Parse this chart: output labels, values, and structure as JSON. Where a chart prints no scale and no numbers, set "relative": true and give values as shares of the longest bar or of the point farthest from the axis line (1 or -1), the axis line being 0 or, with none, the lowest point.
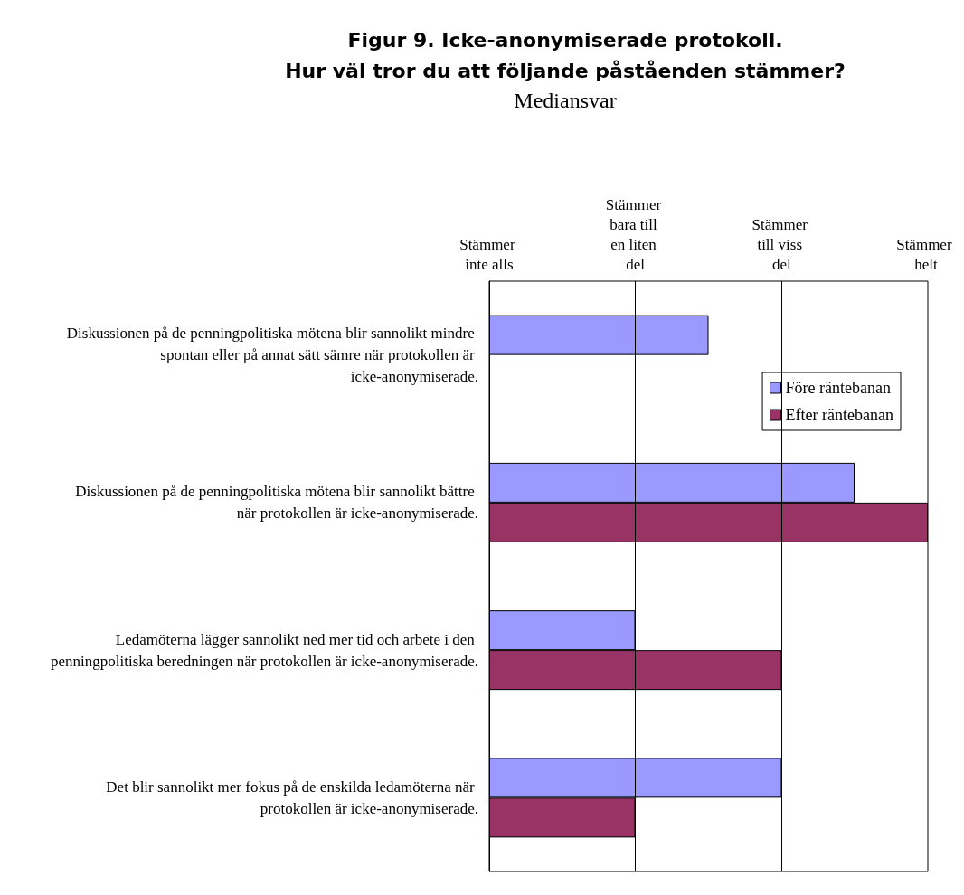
{
  "chart_data": {
    "type": "bar",
    "orientation": "horizontal",
    "relative": true,
    "title": "Figur 9. Icke-anonymiserade protokoll.\nHur väl tror du att följande påståenden stämmer?",
    "subtitle": "Mediansvar",
    "categories": [
      "Diskussionen på de penningpolitiska mötena blir sannolikt mindre spontan eller på annat sätt sämre när protokollen är icke-anonymiserade.",
      "Diskussionen på de penningpolitiska mötena blir sannolikt bättre när protokollen är icke-anonymiserade.",
      "Ledamöterna lägger sannolikt ned mer tid och arbete i den penningpolitiska beredningen när protokollen är icke-anonymiserade.",
      "Det blir sannolikt mer fokus på de enskilda ledamöterna när protokollen är icke-anonymiserade."
    ],
    "series": [
      {
        "name": "Före räntebanan",
        "color": "#9999ff",
        "values": [
          0.5,
          0.833,
          0.333,
          0.667
        ]
      },
      {
        "name": "Efter räntebanan",
        "color": "#993366",
        "values": [
          null,
          1,
          0.667,
          0.333
        ]
      }
    ],
    "annotations": [
      "Stämmer inte alls",
      "Stämmer bara till en liten del",
      "Stämmer till viss del",
      "Stämmer helt"
    ],
    "ref_lines": [
      {
        "axis": "x",
        "value": 0.333,
        "color": "#000000"
      },
      {
        "axis": "x",
        "value": 0.667,
        "color": "#000000"
      }
    ],
    "legend": "top right"
  }
}
